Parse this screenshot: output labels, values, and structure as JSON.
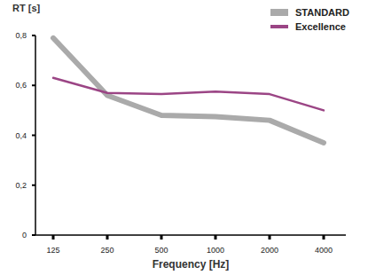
{
  "chart_data": {
    "type": "line",
    "y_label": "RT [s]",
    "x_label": "Frequency [Hz]",
    "categories": [
      "125",
      "250",
      "500",
      "1000",
      "2000",
      "4000"
    ],
    "series": [
      {
        "name": "STANDARD",
        "color": "#aaaaaa",
        "values": [
          0.79,
          0.56,
          0.48,
          0.475,
          0.46,
          0.37
        ]
      },
      {
        "name": "Excellence",
        "color": "#9b4585",
        "values": [
          0.63,
          0.57,
          0.565,
          0.575,
          0.565,
          0.5
        ]
      }
    ],
    "ylim": [
      0,
      0.8
    ],
    "yticks": [
      0,
      {
        "value": 0.2,
        "label": "0,2"
      },
      {
        "value": 0.4,
        "label": "0,4"
      },
      {
        "value": 0.6,
        "label": "0,6"
      },
      {
        "value": 0.8,
        "label": "0,8"
      }
    ],
    "grid": false,
    "legend": "upper right"
  }
}
